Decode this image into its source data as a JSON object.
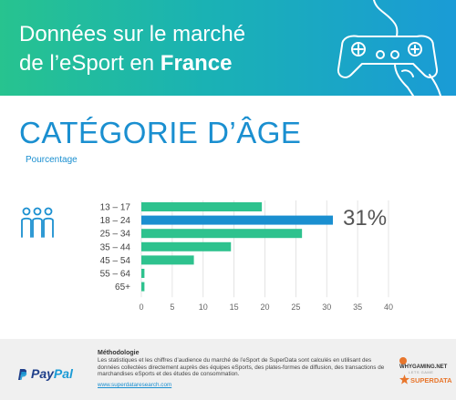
{
  "header": {
    "title_line1": "Données sur le marché",
    "title_line2_prefix": "de l’eSport en ",
    "title_line2_bold": "France"
  },
  "section": {
    "title": "CATÉGORIE D’ÂGE",
    "subtitle": "Pourcentage"
  },
  "highlight": {
    "label": "31%"
  },
  "chart_data": {
    "type": "bar",
    "orientation": "horizontal",
    "categories": [
      "13 – 17",
      "18 – 24",
      "25 – 34",
      "35 – 44",
      "45 – 54",
      "55 – 64",
      "65+"
    ],
    "values": [
      19.5,
      31,
      26,
      14.5,
      8.5,
      0.5,
      0.5
    ],
    "xlim": [
      0,
      40
    ],
    "xticks": [
      "0",
      "5",
      "10",
      "15",
      "20",
      "25",
      "30",
      "35",
      "40"
    ],
    "highlight_index": 1,
    "colors": {
      "bar": "#2ec28e",
      "highlight": "#1a8fd0",
      "grid": "#dddddd"
    },
    "grid": true
  },
  "footer": {
    "brand_pay": "Pay",
    "brand_pal": "Pal",
    "method_title": "Méthodologie",
    "method_text": "Les statistiques et les chiffres d’audience du marché de l’eSport de SuperData sont calculés en utilisant des données collectées directement auprès des équipes eSports, des plates-formes de diffusion, des transactions de marchandises eSports et des études de consommation.",
    "method_link": "www.superdataresearch.com",
    "logo1_name": "WHYGAMING.NET",
    "logo1_sub": "LETS GAME",
    "logo2_name": "SUPERDATA"
  },
  "icons": {
    "controller": "gamepad-icon",
    "people": "people-group-icon",
    "paypal": "paypal-logo-icon",
    "superdata": "star-logo-icon"
  }
}
